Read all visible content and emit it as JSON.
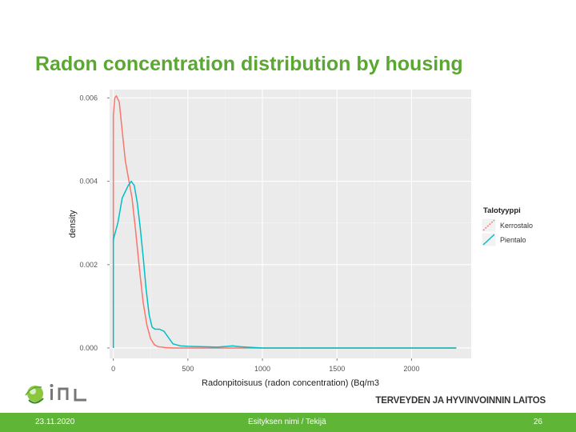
{
  "slide": {
    "title": "Radon concentration distribution by housing"
  },
  "chart_data": {
    "type": "line",
    "title": "",
    "xlabel": "Radonpitoisuus (radon concentration) (Bq/m3",
    "ylabel": "density",
    "xlim": [
      -25,
      2400
    ],
    "ylim": [
      -0.00025,
      0.0062
    ],
    "x_ticks": [
      0,
      500,
      1000,
      1500,
      2000
    ],
    "x_tick_labels": [
      "0",
      "500",
      "1000",
      "1500",
      "2000"
    ],
    "y_ticks": [
      0.0,
      0.002,
      0.004,
      0.006
    ],
    "y_tick_labels": [
      "0.000",
      "0.002",
      "0.004",
      "0.006"
    ],
    "grid": true,
    "legend": {
      "title": "Talotyyppi",
      "placement": "right",
      "entries": [
        "Kerrostalo",
        "Pientalo"
      ]
    },
    "series": [
      {
        "name": "Kerrostalo",
        "color": "#f8766d",
        "points": [
          [
            0,
            0.0056
          ],
          [
            10,
            0.006
          ],
          [
            20,
            0.00605
          ],
          [
            40,
            0.0059
          ],
          [
            60,
            0.0052
          ],
          [
            80,
            0.0045
          ],
          [
            100,
            0.0041
          ],
          [
            125,
            0.0036
          ],
          [
            150,
            0.0028
          ],
          [
            175,
            0.0019
          ],
          [
            200,
            0.0011
          ],
          [
            225,
            0.00055
          ],
          [
            250,
            0.00022
          ],
          [
            275,
            8e-05
          ],
          [
            300,
            3e-05
          ],
          [
            350,
            1e-05
          ],
          [
            400,
            0.0
          ],
          [
            2300,
            0.0
          ]
        ]
      },
      {
        "name": "Pientalo",
        "color": "#00bfc4",
        "points": [
          [
            0,
            0.0026
          ],
          [
            15,
            0.0028
          ],
          [
            30,
            0.003
          ],
          [
            60,
            0.0036
          ],
          [
            100,
            0.0039
          ],
          [
            120,
            0.004
          ],
          [
            140,
            0.0039
          ],
          [
            160,
            0.0035
          ],
          [
            180,
            0.0029
          ],
          [
            200,
            0.0022
          ],
          [
            220,
            0.0014
          ],
          [
            240,
            0.0008
          ],
          [
            260,
            0.0005
          ],
          [
            280,
            0.00045
          ],
          [
            310,
            0.00045
          ],
          [
            340,
            0.0004
          ],
          [
            370,
            0.00025
          ],
          [
            400,
            0.0001
          ],
          [
            450,
            5e-05
          ],
          [
            500,
            4e-05
          ],
          [
            600,
            3e-05
          ],
          [
            700,
            2e-05
          ],
          [
            800,
            5e-05
          ],
          [
            850,
            3e-05
          ],
          [
            950,
            1e-05
          ],
          [
            1000,
            0.0
          ],
          [
            2300,
            0.0
          ]
        ]
      }
    ]
  },
  "footer": {
    "date": "23.11.2020",
    "presentation": "Esityksen nimi / Tekijä",
    "page": "26"
  },
  "branding": {
    "organization": "TERVEYDEN JA HYVINVOINNIN LAITOS",
    "logo_text": "THL",
    "accent_color": "#5fb536"
  }
}
